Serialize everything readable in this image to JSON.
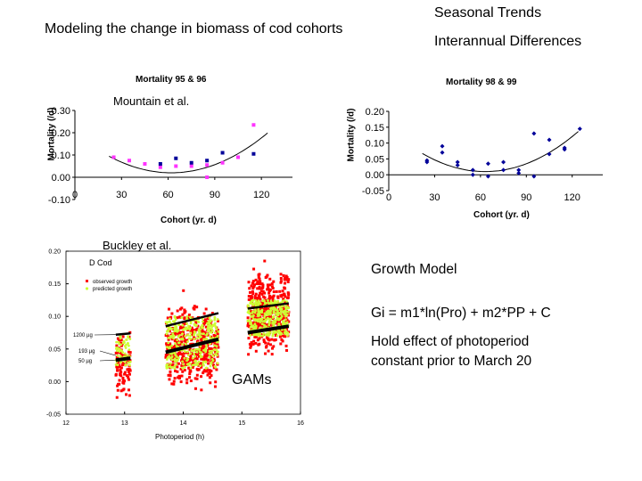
{
  "slide": {
    "title": "Modeling the change in biomass of cod cohorts",
    "top_right": [
      "Seasonal Trends",
      "Interannual Differences"
    ],
    "growth_model": {
      "heading": "Growth Model",
      "equation": "Gi = m1*ln(Pro) + m2*PP + C",
      "note_line1": "Hold effect of photoperiod",
      "note_line2": "constant prior to March 20"
    },
    "gams_label": "GAMs",
    "credit_mountain": "Mountain et al.",
    "credit_buckley": "Buckley et al."
  },
  "chart_data": [
    {
      "type": "scatter",
      "title": "Mortality 95 & 96",
      "xlabel": "Cohort (yr. d)",
      "ylabel": "Mortality (/d)",
      "xlim": [
        0,
        140
      ],
      "ylim": [
        -0.1,
        0.3
      ],
      "xticks": [
        0,
        30,
        60,
        90,
        120
      ],
      "yticks": [
        -0.1,
        0.0,
        0.1,
        0.2,
        0.3
      ],
      "ytick_labels": [
        "-0.10",
        "0.00",
        "0.10",
        "0.20",
        "0.30"
      ],
      "colors": {
        "pink": "#ff33ff",
        "blue": "#000099"
      },
      "series": [
        {
          "color_key": "pink",
          "points": [
            [
              25,
              0.09
            ],
            [
              35,
              0.075
            ],
            [
              45,
              0.06
            ],
            [
              55,
              0.045
            ],
            [
              65,
              0.05
            ],
            [
              75,
              0.05
            ],
            [
              85,
              0.055
            ],
            [
              85,
              0.0
            ],
            [
              95,
              0.065
            ],
            [
              105,
              0.09
            ],
            [
              115,
              0.235
            ]
          ]
        },
        {
          "color_key": "blue",
          "points": [
            [
              55,
              0.06
            ],
            [
              65,
              0.085
            ],
            [
              75,
              0.065
            ],
            [
              85,
              0.075
            ],
            [
              95,
              0.11
            ],
            [
              115,
              0.105
            ]
          ]
        }
      ],
      "trend": {
        "type": "quadratic",
        "vertex_x": 62,
        "vertex_y": 0.02,
        "a": 4.65e-05
      }
    },
    {
      "type": "scatter",
      "title": "Mortality 98 & 99",
      "xlabel": "Cohort (yr. d)",
      "ylabel": "Mortality (/d)",
      "xlim": [
        0,
        140
      ],
      "ylim": [
        -0.05,
        0.2
      ],
      "xticks": [
        0,
        30,
        60,
        90,
        120
      ],
      "yticks": [
        -0.05,
        0.0,
        0.05,
        0.1,
        0.15,
        0.2
      ],
      "ytick_labels": [
        "-0.05",
        "0.00",
        "0.05",
        "0.10",
        "0.15",
        "0.20"
      ],
      "colors": {
        "blue": "#000099"
      },
      "series": [
        {
          "color_key": "blue",
          "points": [
            [
              25,
              0.045
            ],
            [
              25,
              0.04
            ],
            [
              35,
              0.09
            ],
            [
              35,
              0.07
            ],
            [
              45,
              0.04
            ],
            [
              45,
              0.03
            ],
            [
              55,
              0.015
            ],
            [
              55,
              0.0
            ],
            [
              65,
              0.035
            ],
            [
              65,
              -0.005
            ],
            [
              75,
              0.04
            ],
            [
              75,
              0.015
            ],
            [
              85,
              0.015
            ],
            [
              85,
              0.005
            ],
            [
              95,
              0.13
            ],
            [
              95,
              -0.005
            ],
            [
              105,
              0.11
            ],
            [
              105,
              0.065
            ],
            [
              115,
              0.085
            ],
            [
              115,
              0.08
            ],
            [
              125,
              0.145
            ]
          ]
        }
      ],
      "trend": {
        "type": "quadratic",
        "vertex_x": 63,
        "vertex_y": 0.01,
        "a": 3.4e-05
      }
    },
    {
      "type": "scatter",
      "panel_label": "D  Cod",
      "xlabel": "Photoperiod (h)",
      "xlim": [
        12,
        16
      ],
      "ylim": [
        -0.05,
        0.2
      ],
      "xticks": [
        12,
        13,
        14,
        15,
        16
      ],
      "yticks": [
        -0.05,
        0.0,
        0.05,
        0.1,
        0.15,
        0.2
      ],
      "ytick_labels": [
        "-0.05",
        "0.00",
        "0.05",
        "0.10",
        "0.15",
        "0.20"
      ],
      "legend": [
        "observed growth",
        "predicted growth"
      ],
      "colors": {
        "observed": "#ff0000",
        "predicted": "#ccff33",
        "line": "#000000"
      },
      "line_labels": [
        "1200 µg",
        "193 µg",
        "50 µg"
      ],
      "clusters": [
        {
          "x_range": [
            12.85,
            13.1
          ],
          "obs_y": [
            -0.04,
            0.1
          ],
          "pred_y": [
            0.025,
            0.07
          ]
        },
        {
          "x_range": [
            13.7,
            14.6
          ],
          "obs_y": [
            -0.03,
            0.14
          ],
          "pred_y": [
            0.02,
            0.1
          ]
        },
        {
          "x_range": [
            15.1,
            15.8
          ],
          "obs_y": [
            0.02,
            0.195
          ],
          "pred_y": [
            0.07,
            0.125
          ]
        }
      ],
      "lines": [
        {
          "label": "1200 µg",
          "segments": [
            [
              [
                12.85,
                0.072
              ],
              [
                13.1,
                0.074
              ]
            ],
            [
              [
                13.7,
                0.085
              ],
              [
                14.6,
                0.105
              ]
            ],
            [
              [
                15.1,
                0.112
              ],
              [
                15.8,
                0.12
              ]
            ]
          ]
        },
        {
          "label": "50 µg",
          "segments": [
            [
              [
                12.85,
                0.033
              ],
              [
                13.1,
                0.036
              ]
            ],
            [
              [
                13.7,
                0.045
              ],
              [
                14.6,
                0.065
              ]
            ],
            [
              [
                15.1,
                0.075
              ],
              [
                15.8,
                0.085
              ]
            ]
          ]
        }
      ]
    }
  ]
}
